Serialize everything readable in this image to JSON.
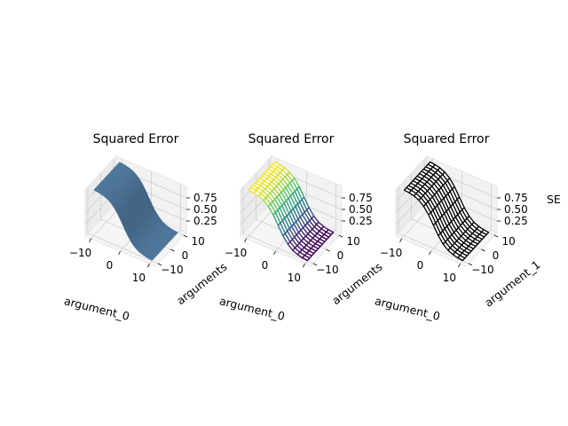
{
  "chart_data": [
    {
      "type": "surface",
      "style": "solid",
      "title": "Squared Error",
      "xlabel": "argument_0",
      "ylabel": "arguments",
      "zlabel": "",
      "xticks": [
        "−10",
        "0",
        "10"
      ],
      "yticks": [
        "−10",
        "0",
        "10"
      ],
      "zticks": [
        "0.25",
        "0.50",
        "0.75"
      ],
      "xlim": [
        -12,
        12
      ],
      "ylim": [
        -12,
        12
      ],
      "zlim": [
        0,
        1
      ],
      "color": "#4a7194"
    },
    {
      "type": "surface",
      "style": "viridis-wireframe",
      "title": "Squared Error",
      "xlabel": "argument_0",
      "ylabel": "arguments",
      "zlabel": "",
      "xticks": [
        "−10",
        "0",
        "10"
      ],
      "yticks": [
        "−10",
        "0",
        "10"
      ],
      "zticks": [
        "0.25",
        "0.50",
        "0.75"
      ],
      "xlim": [
        -12,
        12
      ],
      "ylim": [
        -12,
        12
      ],
      "zlim": [
        0,
        1
      ],
      "color": "#440154"
    },
    {
      "type": "surface",
      "style": "wireframe",
      "title": "Squared Error",
      "xlabel": "argument_0",
      "ylabel": "argument_1",
      "zlabel": "SE",
      "xticks": [
        "−10",
        "0",
        "10"
      ],
      "yticks": [
        "−10",
        "0",
        "10"
      ],
      "zticks": [
        "0.25",
        "0.50",
        "0.75"
      ],
      "xlim": [
        -12,
        12
      ],
      "ylim": [
        -12,
        12
      ],
      "zlim": [
        0,
        1
      ],
      "color": "#000000"
    }
  ]
}
